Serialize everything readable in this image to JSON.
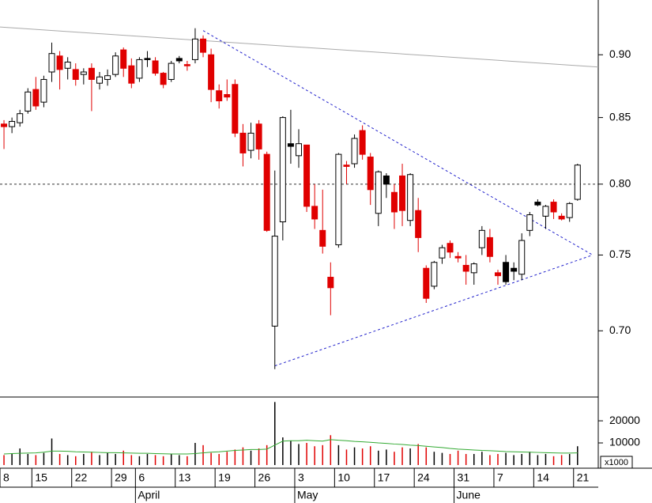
{
  "chart_data": {
    "type": "candlestick",
    "log_scale": true,
    "ylim": [
      0.66,
      0.946
    ],
    "yticks": [
      {
        "value": 0.9,
        "label": "0.90"
      },
      {
        "value": 0.85,
        "label": "0.85"
      },
      {
        "value": 0.8,
        "label": "0.80"
      },
      {
        "value": 0.75,
        "label": "0.75"
      },
      {
        "value": 0.7,
        "label": "0.70"
      }
    ],
    "xlim": [
      -0.5,
      74.6
    ],
    "xticks": [
      {
        "value": -0.5,
        "label": "8"
      },
      {
        "value": 3.5,
        "label": "15"
      },
      {
        "value": 8.5,
        "label": "22"
      },
      {
        "value": 13.5,
        "label": "29"
      },
      {
        "value": 16.5,
        "label": "6"
      },
      {
        "value": 21.5,
        "label": "13"
      },
      {
        "value": 26.5,
        "label": "19"
      },
      {
        "value": 31.5,
        "label": "26"
      },
      {
        "value": 36.5,
        "label": "3"
      },
      {
        "value": 41.5,
        "label": "10"
      },
      {
        "value": 46.5,
        "label": "17"
      },
      {
        "value": 51.5,
        "label": "24"
      },
      {
        "value": 56.5,
        "label": "31"
      },
      {
        "value": 61.5,
        "label": "7"
      },
      {
        "value": 66.5,
        "label": "14"
      },
      {
        "value": 71.5,
        "label": "21"
      }
    ],
    "months": [
      {
        "value": 16.5,
        "label": "April"
      },
      {
        "value": 36.5,
        "label": "May"
      },
      {
        "value": 56.5,
        "label": "June"
      }
    ],
    "colors": {
      "up": "#ffffff",
      "down": "#e00000",
      "volume_ma": "#33aa33"
    },
    "candles": [
      {
        "open": 0.845,
        "high": 0.848,
        "low": 0.826,
        "close": 0.843
      },
      {
        "open": 0.843,
        "high": 0.85,
        "low": 0.838,
        "close": 0.847
      },
      {
        "open": 0.846,
        "high": 0.856,
        "low": 0.843,
        "close": 0.853
      },
      {
        "open": 0.855,
        "high": 0.873,
        "low": 0.853,
        "close": 0.87
      },
      {
        "open": 0.872,
        "high": 0.882,
        "low": 0.856,
        "close": 0.859
      },
      {
        "open": 0.862,
        "high": 0.883,
        "low": 0.858,
        "close": 0.88
      },
      {
        "open": 0.886,
        "high": 0.91,
        "low": 0.878,
        "close": 0.901
      },
      {
        "open": 0.899,
        "high": 0.903,
        "low": 0.872,
        "close": 0.888
      },
      {
        "open": 0.889,
        "high": 0.898,
        "low": 0.88,
        "close": 0.894
      },
      {
        "open": 0.888,
        "high": 0.893,
        "low": 0.875,
        "close": 0.88
      },
      {
        "open": 0.884,
        "high": 0.889,
        "low": 0.876,
        "close": 0.886
      },
      {
        "open": 0.889,
        "high": 0.893,
        "low": 0.855,
        "close": 0.88
      },
      {
        "open": 0.877,
        "high": 0.886,
        "low": 0.872,
        "close": 0.882
      },
      {
        "open": 0.88,
        "high": 0.888,
        "low": 0.875,
        "close": 0.883
      },
      {
        "open": 0.884,
        "high": 0.902,
        "low": 0.882,
        "close": 0.899
      },
      {
        "open": 0.904,
        "high": 0.906,
        "low": 0.882,
        "close": 0.889
      },
      {
        "open": 0.891,
        "high": 0.897,
        "low": 0.873,
        "close": 0.877
      },
      {
        "open": 0.881,
        "high": 0.898,
        "low": 0.878,
        "close": 0.896
      },
      {
        "open": 0.897,
        "high": 0.903,
        "low": 0.89,
        "close": 0.896,
        "color": "#000000"
      },
      {
        "open": 0.895,
        "high": 0.898,
        "low": 0.883,
        "close": 0.885
      },
      {
        "open": 0.885,
        "high": 0.886,
        "low": 0.873,
        "close": 0.876
      },
      {
        "open": 0.88,
        "high": 0.895,
        "low": 0.878,
        "close": 0.893
      },
      {
        "open": 0.897,
        "high": 0.899,
        "low": 0.893,
        "close": 0.895,
        "color": "#000000"
      },
      {
        "open": 0.892,
        "high": 0.895,
        "low": 0.887,
        "close": 0.891
      },
      {
        "open": 0.896,
        "high": 0.922,
        "low": 0.893,
        "close": 0.913
      },
      {
        "open": 0.913,
        "high": 0.916,
        "low": 0.898,
        "close": 0.902
      },
      {
        "open": 0.9,
        "high": 0.905,
        "low": 0.862,
        "close": 0.872
      },
      {
        "open": 0.871,
        "high": 0.876,
        "low": 0.857,
        "close": 0.863
      },
      {
        "open": 0.868,
        "high": 0.88,
        "low": 0.863,
        "close": 0.866
      },
      {
        "open": 0.876,
        "high": 0.88,
        "low": 0.835,
        "close": 0.838
      },
      {
        "open": 0.838,
        "high": 0.845,
        "low": 0.813,
        "close": 0.823
      },
      {
        "open": 0.825,
        "high": 0.846,
        "low": 0.819,
        "close": 0.838
      },
      {
        "open": 0.845,
        "high": 0.848,
        "low": 0.818,
        "close": 0.826
      },
      {
        "open": 0.822,
        "high": 0.824,
        "low": 0.766,
        "close": 0.767
      },
      {
        "open": 0.703,
        "high": 0.81,
        "low": 0.676,
        "close": 0.763
      },
      {
        "open": 0.773,
        "high": 0.851,
        "low": 0.76,
        "close": 0.85
      },
      {
        "open": 0.83,
        "high": 0.856,
        "low": 0.815,
        "close": 0.828,
        "color": "#000000"
      },
      {
        "open": 0.821,
        "high": 0.841,
        "low": 0.812,
        "close": 0.83
      },
      {
        "open": 0.829,
        "high": 0.829,
        "low": 0.78,
        "close": 0.784
      },
      {
        "open": 0.784,
        "high": 0.8,
        "low": 0.768,
        "close": 0.775
      },
      {
        "open": 0.767,
        "high": 0.796,
        "low": 0.751,
        "close": 0.756
      },
      {
        "open": 0.735,
        "high": 0.745,
        "low": 0.71,
        "close": 0.728
      },
      {
        "open": 0.757,
        "high": 0.823,
        "low": 0.755,
        "close": 0.822
      },
      {
        "open": 0.814,
        "high": 0.817,
        "low": 0.8,
        "close": 0.813
      },
      {
        "open": 0.815,
        "high": 0.837,
        "low": 0.812,
        "close": 0.834
      },
      {
        "open": 0.84,
        "high": 0.844,
        "low": 0.818,
        "close": 0.822
      },
      {
        "open": 0.82,
        "high": 0.823,
        "low": 0.785,
        "close": 0.796
      },
      {
        "open": 0.779,
        "high": 0.81,
        "low": 0.77,
        "close": 0.809
      },
      {
        "open": 0.806,
        "high": 0.808,
        "low": 0.79,
        "close": 0.8,
        "color": "#000000"
      },
      {
        "open": 0.794,
        "high": 0.8,
        "low": 0.768,
        "close": 0.78
      },
      {
        "open": 0.806,
        "high": 0.815,
        "low": 0.77,
        "close": 0.781
      },
      {
        "open": 0.774,
        "high": 0.808,
        "low": 0.77,
        "close": 0.807
      },
      {
        "open": 0.781,
        "high": 0.79,
        "low": 0.752,
        "close": 0.762
      },
      {
        "open": 0.741,
        "high": 0.743,
        "low": 0.718,
        "close": 0.721
      },
      {
        "open": 0.729,
        "high": 0.746,
        "low": 0.727,
        "close": 0.745
      },
      {
        "open": 0.748,
        "high": 0.757,
        "low": 0.744,
        "close": 0.755
      },
      {
        "open": 0.758,
        "high": 0.76,
        "low": 0.748,
        "close": 0.752
      },
      {
        "open": 0.749,
        "high": 0.752,
        "low": 0.745,
        "close": 0.748
      },
      {
        "open": 0.743,
        "high": 0.75,
        "low": 0.73,
        "close": 0.739
      },
      {
        "open": 0.738,
        "high": 0.745,
        "low": 0.73,
        "close": 0.744
      },
      {
        "open": 0.755,
        "high": 0.77,
        "low": 0.75,
        "close": 0.767
      },
      {
        "open": 0.762,
        "high": 0.768,
        "low": 0.745,
        "close": 0.749
      },
      {
        "open": 0.738,
        "high": 0.74,
        "low": 0.73,
        "close": 0.736
      },
      {
        "open": 0.732,
        "high": 0.75,
        "low": 0.73,
        "close": 0.745,
        "color": "#000000"
      },
      {
        "open": 0.741,
        "high": 0.745,
        "low": 0.733,
        "close": 0.739,
        "color": "#000000"
      },
      {
        "open": 0.737,
        "high": 0.765,
        "low": 0.733,
        "close": 0.76
      },
      {
        "open": 0.767,
        "high": 0.78,
        "low": 0.763,
        "close": 0.778
      },
      {
        "open": 0.787,
        "high": 0.789,
        "low": 0.784,
        "close": 0.785,
        "color": "#000000"
      },
      {
        "open": 0.777,
        "high": 0.785,
        "low": 0.768,
        "close": 0.784
      },
      {
        "open": 0.787,
        "high": 0.789,
        "low": 0.775,
        "close": 0.78
      },
      {
        "open": 0.777,
        "high": 0.779,
        "low": 0.774,
        "close": 0.775
      },
      {
        "open": 0.776,
        "high": 0.787,
        "low": 0.773,
        "close": 0.786
      },
      {
        "open": 0.789,
        "high": 0.815,
        "low": 0.788,
        "close": 0.814
      }
    ],
    "lines": [
      {
        "x": [
          -0.5,
          74.6
        ],
        "y": [
          0.923,
          0.89
        ],
        "color": "#aaaaaa",
        "dashed": false
      },
      {
        "x": [
          -0.5,
          74.6
        ],
        "y": [
          0.8,
          0.8
        ],
        "color": "#333333",
        "dashed": true
      },
      {
        "x": [
          25,
          73.9
        ],
        "y": [
          0.92,
          0.75
        ],
        "color": "#2222cc",
        "dashed": true
      },
      {
        "x": [
          34,
          73.9
        ],
        "y": [
          0.678,
          0.75
        ],
        "color": "#2222cc",
        "dashed": true
      }
    ],
    "volume": {
      "unit_label": "x1000",
      "ylim": [
        0,
        30400
      ],
      "yticks": [
        20000,
        10000
      ],
      "values": [
        4500,
        5000,
        7500,
        5000,
        4500,
        5500,
        12000,
        5000,
        4500,
        4000,
        5000,
        6000,
        4500,
        5500,
        5000,
        6500,
        4500,
        4000,
        5000,
        4500,
        4000,
        5000,
        4500,
        4000,
        10000,
        9000,
        5500,
        5000,
        6000,
        7000,
        8000,
        6500,
        7500,
        9000,
        28500,
        12500,
        11000,
        9500,
        10000,
        8500,
        9000,
        13500,
        9000,
        7000,
        8000,
        7500,
        8500,
        6500,
        7000,
        6000,
        8000,
        7500,
        9500,
        8000,
        6000,
        5500,
        5000,
        6500,
        5000,
        5000,
        6000,
        4500,
        5000,
        5500,
        4500,
        5000,
        6000,
        4500,
        5000,
        4000,
        4500,
        5000,
        8500
      ],
      "ma": [
        5000,
        5200,
        5300,
        5400,
        5500,
        5800,
        6300,
        6300,
        6200,
        6000,
        5900,
        5800,
        5700,
        5600,
        5600,
        5500,
        5400,
        5300,
        5300,
        5200,
        5100,
        5000,
        5000,
        5000,
        5200,
        5500,
        5800,
        6000,
        6300,
        6600,
        6800,
        7000,
        7000,
        7200,
        9000,
        10800,
        11000,
        11000,
        11200,
        11000,
        10800,
        11500,
        11200,
        11000,
        10700,
        10500,
        10300,
        10000,
        9800,
        9500,
        9300,
        9000,
        8800,
        8500,
        8200,
        7900,
        7500,
        7200,
        7000,
        6800,
        6600,
        6500,
        6300,
        6100,
        6000,
        5900,
        5800,
        5700,
        5600,
        5500,
        5400,
        5400,
        5500
      ]
    }
  }
}
